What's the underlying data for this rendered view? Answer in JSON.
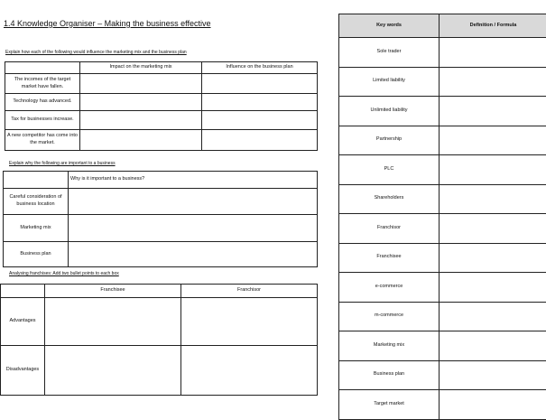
{
  "title": "1.4 Knowledge Organiser – Making the business effective",
  "section1": {
    "instruction": "Explain how each of the following would influence the marketing mix and the business plan",
    "headers": [
      "",
      "Impact on the marketing mix",
      "Influence on the business plan"
    ],
    "rows": [
      "The incomes of the target market have fallen.",
      "Technology has advanced.",
      "Tax for businesses increase.",
      "A new competitor has come into the market."
    ]
  },
  "section2": {
    "instruction": "Explain why the following are important to a business",
    "header": "Why is it important to a business?",
    "rows": [
      "Careful consideration of business location",
      "Marketing mix",
      "Business plan"
    ]
  },
  "section3": {
    "instruction": "Analysing franchises: Add two bullet points to each box",
    "headers": [
      "",
      "Franchisee",
      "Franchisor"
    ],
    "rows": [
      "Advantages",
      "Disadvantages"
    ]
  },
  "keywords": {
    "headers": [
      "Key words",
      "Definition / Formula"
    ],
    "rows": [
      "Sole trader",
      "Limited liability",
      "Unlimited liability",
      "Partnership",
      "PLC",
      "Shareholders",
      "Franchisor",
      "Franchisee",
      "e-commerce",
      "m-commerce",
      "Marketing mix",
      "Business plan",
      "Target market"
    ]
  }
}
